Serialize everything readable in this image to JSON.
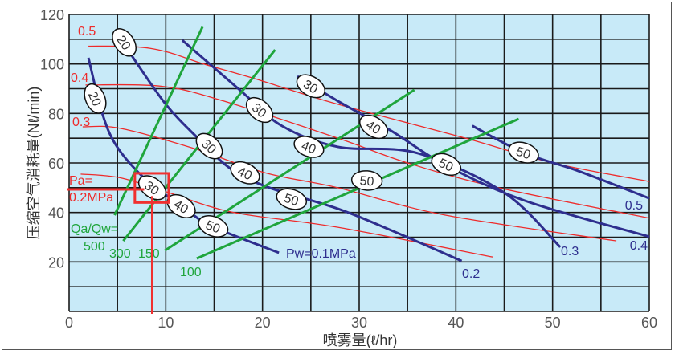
{
  "chart_data": {
    "type": "line",
    "xlabel": "喷雾量(ℓ/hr)",
    "ylabel": "压缩空气消耗量(Nℓ/min)",
    "xlim": [
      0,
      60
    ],
    "ylim": [
      0,
      120
    ],
    "x_ticks": [
      "0",
      "10",
      "20",
      "30",
      "40",
      "50",
      "60"
    ],
    "y_ticks": [
      "20",
      "40",
      "60",
      "80",
      "100",
      "120"
    ],
    "grid": true,
    "grid_x_step": 5,
    "grid_y_step": 10,
    "colors": {
      "background": "#c8eaf8",
      "grid": "#1a1a1a",
      "pa": "#ee2b2b",
      "pw": "#2e2e8e",
      "ratio": "#1fa53c",
      "highlight": "#f03030"
    },
    "pa_series": [
      {
        "name": "0.5",
        "points": [
          [
            2.0,
            107.2
          ],
          [
            6.7,
            107
          ],
          [
            10,
            105
          ],
          [
            13.9,
            100
          ],
          [
            18.9,
            94.4
          ],
          [
            27.8,
            83.7
          ],
          [
            41,
            70
          ],
          [
            50,
            60
          ],
          [
            60,
            52.5
          ]
        ]
      },
      {
        "name": "0.4",
        "points": [
          [
            1.7,
            91.5
          ],
          [
            9.5,
            91
          ],
          [
            16,
            85
          ],
          [
            27.8,
            70
          ],
          [
            35,
            60
          ],
          [
            44.4,
            50
          ],
          [
            60,
            37.7
          ]
        ]
      },
      {
        "name": "0.3",
        "points": [
          [
            1.4,
            74.6
          ],
          [
            5.3,
            74
          ],
          [
            12.8,
            66
          ],
          [
            20.3,
            56
          ],
          [
            27.8,
            50
          ],
          [
            38.8,
            39
          ],
          [
            56.6,
            28.5
          ]
        ]
      },
      {
        "name": "0.2MPa",
        "points": [
          [
            1.2,
            55.5
          ],
          [
            5.3,
            54
          ],
          [
            10.3,
            48
          ],
          [
            17,
            40
          ],
          [
            27.8,
            34
          ],
          [
            43.8,
            22
          ]
        ]
      }
    ],
    "pa_title": "Pa=",
    "pw_series": [
      {
        "name": "Pw=0.1MPa",
        "points": [
          [
            2,
            102.5
          ],
          [
            3.4,
            80.4
          ],
          [
            4.8,
            67.5
          ],
          [
            7.2,
            56
          ],
          [
            9.5,
            48.6
          ],
          [
            12.3,
            40.5
          ],
          [
            15,
            34
          ],
          [
            21.7,
            23.7
          ]
        ],
        "markers": [
          {
            "label": "20",
            "x": 2.7,
            "y": 86
          },
          {
            "label": "30",
            "x": 8.6,
            "y": 50
          },
          {
            "label": "40",
            "x": 11.6,
            "y": 42.5
          },
          {
            "label": "50",
            "x": 14.9,
            "y": 34.4
          }
        ]
      },
      {
        "name": "0.2",
        "points": [
          [
            6.4,
            103.8
          ],
          [
            10,
            83.7
          ],
          [
            13.4,
            69.7
          ],
          [
            16.7,
            57.7
          ],
          [
            20.5,
            50.3
          ],
          [
            27.8,
            41.5
          ],
          [
            33.3,
            32.8
          ],
          [
            40.6,
            20.4
          ]
        ],
        "markers": [
          {
            "label": "20",
            "x": 5.7,
            "y": 108.7
          },
          {
            "label": "30",
            "x": 14.5,
            "y": 66.8
          },
          {
            "label": "40",
            "x": 18.2,
            "y": 56
          },
          {
            "label": "50",
            "x": 23,
            "y": 45.4
          }
        ]
      },
      {
        "name": "0.3",
        "points": [
          [
            11.7,
            109.6
          ],
          [
            17.8,
            89
          ],
          [
            22,
            75
          ],
          [
            27.8,
            66.5
          ],
          [
            36,
            64
          ],
          [
            45,
            48
          ],
          [
            50.8,
            26
          ]
        ],
        "markers": [
          {
            "label": "30",
            "x": 19.7,
            "y": 81.4
          },
          {
            "label": "40",
            "x": 24.8,
            "y": 66.5
          },
          {
            "label": "50",
            "x": 30.8,
            "y": 52.9
          }
        ]
      },
      {
        "name": "0.4",
        "points": [
          [
            23.6,
            95
          ],
          [
            27.8,
            85
          ],
          [
            33.3,
            73
          ],
          [
            38.8,
            59.4
          ],
          [
            47.1,
            44.8
          ],
          [
            60,
            30.2
          ]
        ],
        "markers": [
          {
            "label": "30",
            "x": 25,
            "y": 91
          },
          {
            "label": "40",
            "x": 31.5,
            "y": 74.6
          },
          {
            "label": "50",
            "x": 39,
            "y": 59.4
          }
        ]
      },
      {
        "name": "0.5",
        "points": [
          [
            41.7,
            75
          ],
          [
            47.1,
            64
          ],
          [
            52.7,
            56.7
          ],
          [
            60,
            45.7
          ]
        ],
        "markers": [
          {
            "label": "50",
            "x": 47,
            "y": 64.2
          }
        ]
      }
    ],
    "ratio_title": "Qa/Qw=",
    "ratio_series": [
      {
        "name": "500",
        "points": [
          [
            4.7,
            38.9
          ],
          [
            13.8,
            115
          ]
        ]
      },
      {
        "name": "300",
        "points": [
          [
            5.6,
            28.5
          ],
          [
            21.3,
            105.7
          ]
        ]
      },
      {
        "name": "150",
        "points": [
          [
            9.9,
            24.6
          ],
          [
            35.7,
            89.5
          ]
        ]
      },
      {
        "name": "100",
        "points": [
          [
            13.2,
            21.4
          ],
          [
            46.5,
            77.8
          ]
        ]
      }
    ],
    "highlight": {
      "x": 8.6,
      "y": 49.3,
      "box_x": [
        6.8,
        10.3
      ],
      "box_y": [
        44,
        55.8
      ]
    }
  }
}
